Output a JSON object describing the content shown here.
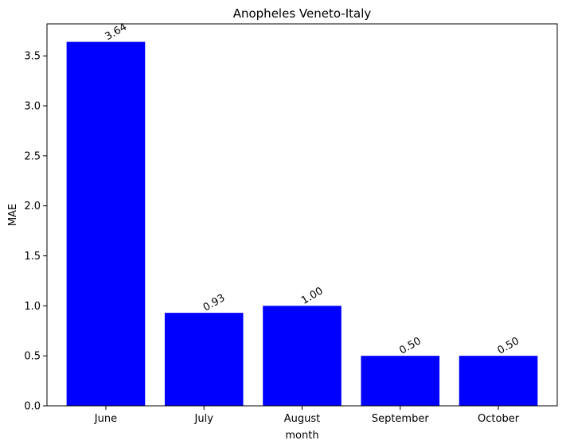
{
  "chart_data": {
    "type": "bar",
    "title": "Anopheles Veneto-Italy",
    "xlabel": "month",
    "ylabel": "MAE",
    "categories": [
      "June",
      "July",
      "August",
      "September",
      "October"
    ],
    "values": [
      3.64,
      0.93,
      1.0,
      0.5,
      0.5
    ],
    "value_labels": [
      "3.64",
      "0.93",
      "1.00",
      "0.50",
      "0.50"
    ],
    "ylim": [
      0,
      3.82
    ],
    "yticks": [
      0.0,
      0.5,
      1.0,
      1.5,
      2.0,
      2.5,
      3.0,
      3.5
    ],
    "ytick_labels": [
      "0.0",
      "0.5",
      "1.0",
      "1.5",
      "2.0",
      "2.5",
      "3.0",
      "3.5"
    ],
    "bar_color": "#0000ff",
    "grid": false,
    "legend": false
  }
}
